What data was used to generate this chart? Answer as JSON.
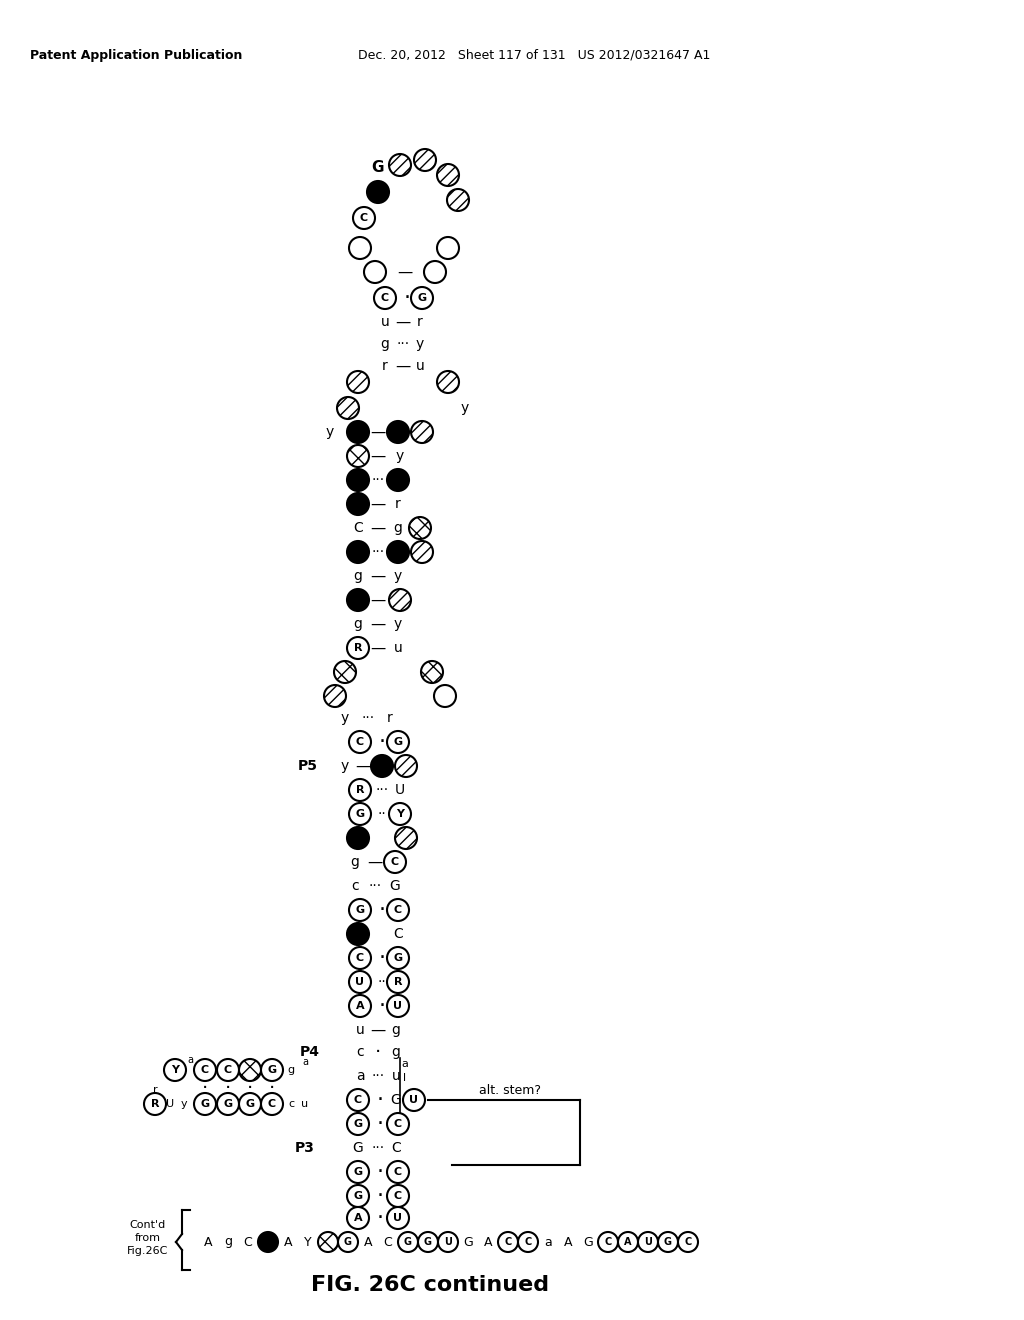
{
  "title_left": "Patent Application Publication",
  "title_right": "Dec. 20, 2012   Sheet 117 of 131   US 2012/0321647 A1",
  "figure_label": "FIG. 26C continued",
  "background_color": "#ffffff"
}
